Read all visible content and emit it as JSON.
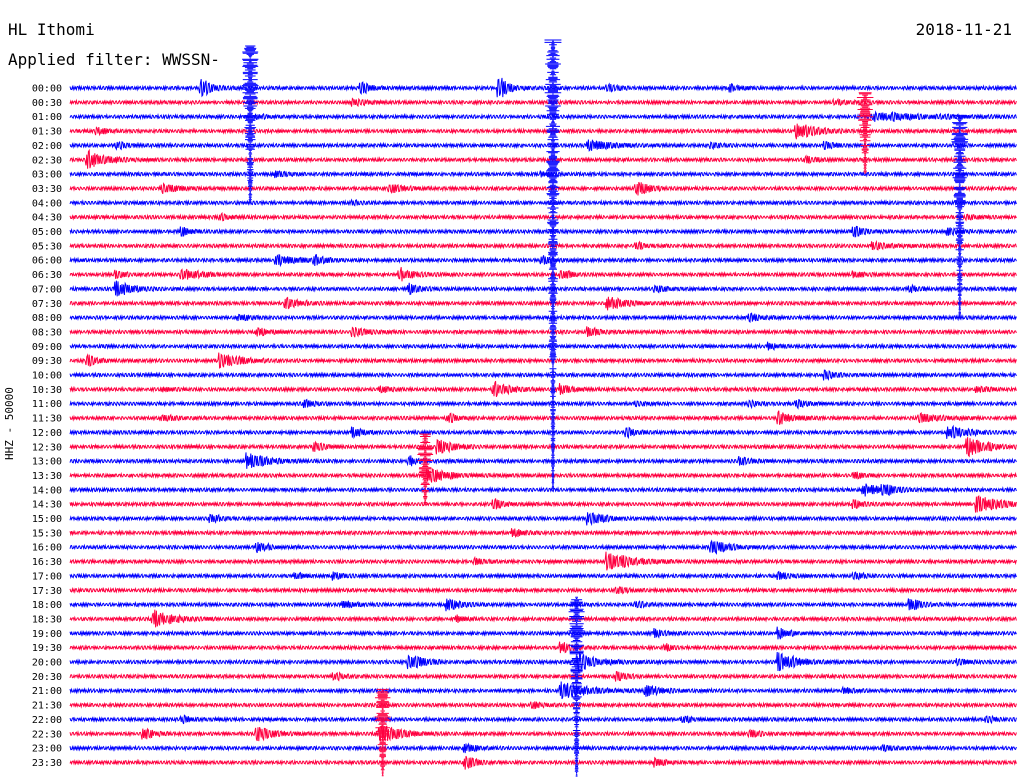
{
  "header": {
    "station": "HL Ithomi",
    "filter": "Applied filter: WWSSN-",
    "date": "2018-11-21"
  },
  "chart_data": {
    "type": "line",
    "title": "HL Ithomi",
    "subtitle": "Applied filter: WWSSN-",
    "date": "2018-11-21",
    "ylabel": "HHZ - 50000",
    "trace_colors": [
      "#0000ff",
      "#ff0040"
    ],
    "categories": [
      "00:00",
      "00:30",
      "01:00",
      "01:30",
      "02:00",
      "02:30",
      "03:00",
      "03:30",
      "04:00",
      "04:30",
      "05:00",
      "05:30",
      "06:00",
      "06:30",
      "07:00",
      "07:30",
      "08:00",
      "08:30",
      "09:00",
      "09:30",
      "10:00",
      "10:30",
      "11:00",
      "11:30",
      "12:00",
      "12:30",
      "13:00",
      "13:30",
      "14:00",
      "14:30",
      "15:00",
      "15:30",
      "16:00",
      "16:30",
      "17:00",
      "17:30",
      "18:00",
      "18:30",
      "19:00",
      "19:30",
      "20:00",
      "20:30",
      "21:00",
      "21:30",
      "22:00",
      "22:30",
      "23:00",
      "23:30"
    ],
    "events": [
      {
        "row": 0,
        "x": 0.14,
        "amp": 9,
        "dur": 0.01
      },
      {
        "row": 0,
        "x": 0.31,
        "amp": 5,
        "dur": 0.01
      },
      {
        "row": 0,
        "x": 0.455,
        "amp": 10,
        "dur": 0.01
      },
      {
        "row": 0,
        "x": 0.57,
        "amp": 4,
        "dur": 0.01
      },
      {
        "row": 0,
        "x": 0.7,
        "amp": 3,
        "dur": 0.01
      },
      {
        "row": 1,
        "x": 0.3,
        "amp": 3,
        "dur": 0.015
      },
      {
        "row": 1,
        "x": 0.81,
        "amp": 2,
        "dur": 0.02
      },
      {
        "row": 2,
        "x": 0.2,
        "amp": 2,
        "dur": 0.01
      },
      {
        "row": 2,
        "x": 0.85,
        "amp": 4,
        "dur": 0.06
      },
      {
        "row": 3,
        "x": 0.03,
        "amp": 3,
        "dur": 0.01
      },
      {
        "row": 3,
        "x": 0.77,
        "amp": 8,
        "dur": 0.02
      },
      {
        "row": 4,
        "x": 0.05,
        "amp": 4,
        "dur": 0.01
      },
      {
        "row": 4,
        "x": 0.55,
        "amp": 6,
        "dur": 0.02
      },
      {
        "row": 4,
        "x": 0.68,
        "amp": 2,
        "dur": 0.01
      },
      {
        "row": 4,
        "x": 0.8,
        "amp": 3,
        "dur": 0.01
      },
      {
        "row": 5,
        "x": 0.02,
        "amp": 9,
        "dur": 0.02
      },
      {
        "row": 5,
        "x": 0.78,
        "amp": 3,
        "dur": 0.01
      },
      {
        "row": 6,
        "x": 0.22,
        "amp": 3,
        "dur": 0.01
      },
      {
        "row": 6,
        "x": 0.5,
        "amp": 2,
        "dur": 0.01
      },
      {
        "row": 7,
        "x": 0.1,
        "amp": 5,
        "dur": 0.015
      },
      {
        "row": 7,
        "x": 0.34,
        "amp": 4,
        "dur": 0.015
      },
      {
        "row": 7,
        "x": 0.6,
        "amp": 6,
        "dur": 0.015
      },
      {
        "row": 8,
        "x": 0.3,
        "amp": 2,
        "dur": 0.01
      },
      {
        "row": 9,
        "x": 0.16,
        "amp": 3,
        "dur": 0.01
      },
      {
        "row": 9,
        "x": 0.95,
        "amp": 2,
        "dur": 0.01
      },
      {
        "row": 10,
        "x": 0.12,
        "amp": 4,
        "dur": 0.01
      },
      {
        "row": 10,
        "x": 0.83,
        "amp": 5,
        "dur": 0.01
      },
      {
        "row": 10,
        "x": 0.93,
        "amp": 3,
        "dur": 0.015
      },
      {
        "row": 11,
        "x": 0.6,
        "amp": 3,
        "dur": 0.01
      },
      {
        "row": 11,
        "x": 0.85,
        "amp": 3,
        "dur": 0.02
      },
      {
        "row": 12,
        "x": 0.22,
        "amp": 5,
        "dur": 0.02
      },
      {
        "row": 12,
        "x": 0.26,
        "amp": 4,
        "dur": 0.01
      },
      {
        "row": 12,
        "x": 0.5,
        "amp": 4,
        "dur": 0.01
      },
      {
        "row": 13,
        "x": 0.05,
        "amp": 3,
        "dur": 0.01
      },
      {
        "row": 13,
        "x": 0.12,
        "amp": 5,
        "dur": 0.02
      },
      {
        "row": 13,
        "x": 0.35,
        "amp": 6,
        "dur": 0.015
      },
      {
        "row": 13,
        "x": 0.52,
        "amp": 5,
        "dur": 0.01
      },
      {
        "row": 13,
        "x": 0.83,
        "amp": 3,
        "dur": 0.01
      },
      {
        "row": 14,
        "x": 0.05,
        "amp": 8,
        "dur": 0.015
      },
      {
        "row": 14,
        "x": 0.36,
        "amp": 5,
        "dur": 0.01
      },
      {
        "row": 14,
        "x": 0.62,
        "amp": 4,
        "dur": 0.01
      },
      {
        "row": 14,
        "x": 0.89,
        "amp": 3,
        "dur": 0.01
      },
      {
        "row": 15,
        "x": 0.23,
        "amp": 5,
        "dur": 0.015
      },
      {
        "row": 15,
        "x": 0.57,
        "amp": 6,
        "dur": 0.02
      },
      {
        "row": 16,
        "x": 0.18,
        "amp": 3,
        "dur": 0.01
      },
      {
        "row": 16,
        "x": 0.72,
        "amp": 4,
        "dur": 0.01
      },
      {
        "row": 17,
        "x": 0.2,
        "amp": 4,
        "dur": 0.01
      },
      {
        "row": 17,
        "x": 0.3,
        "amp": 5,
        "dur": 0.015
      },
      {
        "row": 17,
        "x": 0.55,
        "amp": 5,
        "dur": 0.01
      },
      {
        "row": 18,
        "x": 0.74,
        "amp": 3,
        "dur": 0.01
      },
      {
        "row": 19,
        "x": 0.02,
        "amp": 5,
        "dur": 0.01
      },
      {
        "row": 19,
        "x": 0.16,
        "amp": 7,
        "dur": 0.02
      },
      {
        "row": 20,
        "x": 0.8,
        "amp": 4,
        "dur": 0.01
      },
      {
        "row": 21,
        "x": 0.1,
        "amp": 2,
        "dur": 0.01
      },
      {
        "row": 21,
        "x": 0.33,
        "amp": 3,
        "dur": 0.01
      },
      {
        "row": 21,
        "x": 0.45,
        "amp": 7,
        "dur": 0.015
      },
      {
        "row": 21,
        "x": 0.52,
        "amp": 5,
        "dur": 0.01
      },
      {
        "row": 21,
        "x": 0.96,
        "amp": 3,
        "dur": 0.01
      },
      {
        "row": 22,
        "x": 0.25,
        "amp": 3,
        "dur": 0.01
      },
      {
        "row": 22,
        "x": 0.6,
        "amp": 2,
        "dur": 0.01
      },
      {
        "row": 22,
        "x": 0.72,
        "amp": 3,
        "dur": 0.01
      },
      {
        "row": 22,
        "x": 0.77,
        "amp": 3,
        "dur": 0.01
      },
      {
        "row": 23,
        "x": 0.1,
        "amp": 3,
        "dur": 0.015
      },
      {
        "row": 23,
        "x": 0.4,
        "amp": 4,
        "dur": 0.01
      },
      {
        "row": 23,
        "x": 0.75,
        "amp": 6,
        "dur": 0.015
      },
      {
        "row": 23,
        "x": 0.9,
        "amp": 4,
        "dur": 0.02
      },
      {
        "row": 24,
        "x": 0.3,
        "amp": 5,
        "dur": 0.01
      },
      {
        "row": 24,
        "x": 0.59,
        "amp": 4,
        "dur": 0.01
      },
      {
        "row": 24,
        "x": 0.93,
        "amp": 6,
        "dur": 0.02
      },
      {
        "row": 25,
        "x": 0.26,
        "amp": 4,
        "dur": 0.01
      },
      {
        "row": 25,
        "x": 0.39,
        "amp": 8,
        "dur": 0.015
      },
      {
        "row": 25,
        "x": 0.95,
        "amp": 9,
        "dur": 0.02
      },
      {
        "row": 26,
        "x": 0.19,
        "amp": 7,
        "dur": 0.02
      },
      {
        "row": 26,
        "x": 0.36,
        "amp": 4,
        "dur": 0.01
      },
      {
        "row": 26,
        "x": 0.71,
        "amp": 4,
        "dur": 0.01
      },
      {
        "row": 27,
        "x": 0.38,
        "amp": 8,
        "dur": 0.02
      },
      {
        "row": 27,
        "x": 0.83,
        "amp": 3,
        "dur": 0.01
      },
      {
        "row": 28,
        "x": 0.84,
        "amp": 6,
        "dur": 0.015
      },
      {
        "row": 28,
        "x": 0.86,
        "amp": 5,
        "dur": 0.015
      },
      {
        "row": 29,
        "x": 0.45,
        "amp": 5,
        "dur": 0.01
      },
      {
        "row": 29,
        "x": 0.83,
        "amp": 4,
        "dur": 0.01
      },
      {
        "row": 29,
        "x": 0.96,
        "amp": 8,
        "dur": 0.025
      },
      {
        "row": 30,
        "x": 0.15,
        "amp": 4,
        "dur": 0.01
      },
      {
        "row": 30,
        "x": 0.55,
        "amp": 6,
        "dur": 0.015
      },
      {
        "row": 31,
        "x": 0.47,
        "amp": 4,
        "dur": 0.01
      },
      {
        "row": 32,
        "x": 0.2,
        "amp": 5,
        "dur": 0.01
      },
      {
        "row": 32,
        "x": 0.68,
        "amp": 7,
        "dur": 0.015
      },
      {
        "row": 33,
        "x": 0.43,
        "amp": 3,
        "dur": 0.01
      },
      {
        "row": 33,
        "x": 0.57,
        "amp": 9,
        "dur": 0.025
      },
      {
        "row": 34,
        "x": 0.24,
        "amp": 3,
        "dur": 0.01
      },
      {
        "row": 34,
        "x": 0.28,
        "amp": 3,
        "dur": 0.01
      },
      {
        "row": 34,
        "x": 0.75,
        "amp": 4,
        "dur": 0.01
      },
      {
        "row": 34,
        "x": 0.83,
        "amp": 3,
        "dur": 0.01
      },
      {
        "row": 35,
        "x": 0.58,
        "amp": 3,
        "dur": 0.01
      },
      {
        "row": 36,
        "x": 0.29,
        "amp": 4,
        "dur": 0.01
      },
      {
        "row": 36,
        "x": 0.4,
        "amp": 5,
        "dur": 0.015
      },
      {
        "row": 36,
        "x": 0.6,
        "amp": 3,
        "dur": 0.01
      },
      {
        "row": 36,
        "x": 0.89,
        "amp": 6,
        "dur": 0.01
      },
      {
        "row": 37,
        "x": 0.09,
        "amp": 8,
        "dur": 0.02
      },
      {
        "row": 37,
        "x": 0.41,
        "amp": 3,
        "dur": 0.01
      },
      {
        "row": 38,
        "x": 0.62,
        "amp": 4,
        "dur": 0.01
      },
      {
        "row": 38,
        "x": 0.75,
        "amp": 6,
        "dur": 0.01
      },
      {
        "row": 39,
        "x": 0.52,
        "amp": 6,
        "dur": 0.01
      },
      {
        "row": 39,
        "x": 0.63,
        "amp": 3,
        "dur": 0.01
      },
      {
        "row": 40,
        "x": 0.36,
        "amp": 7,
        "dur": 0.015
      },
      {
        "row": 40,
        "x": 0.54,
        "amp": 8,
        "dur": 0.02
      },
      {
        "row": 40,
        "x": 0.75,
        "amp": 9,
        "dur": 0.02
      },
      {
        "row": 40,
        "x": 0.94,
        "amp": 3,
        "dur": 0.01
      },
      {
        "row": 41,
        "x": 0.28,
        "amp": 4,
        "dur": 0.01
      },
      {
        "row": 41,
        "x": 0.58,
        "amp": 4,
        "dur": 0.01
      },
      {
        "row": 42,
        "x": 0.52,
        "amp": 9,
        "dur": 0.025
      },
      {
        "row": 42,
        "x": 0.61,
        "amp": 5,
        "dur": 0.015
      },
      {
        "row": 42,
        "x": 0.82,
        "amp": 3,
        "dur": 0.01
      },
      {
        "row": 43,
        "x": 0.49,
        "amp": 3,
        "dur": 0.01
      },
      {
        "row": 44,
        "x": 0.12,
        "amp": 3,
        "dur": 0.01
      },
      {
        "row": 44,
        "x": 0.65,
        "amp": 3,
        "dur": 0.01
      },
      {
        "row": 44,
        "x": 0.97,
        "amp": 3,
        "dur": 0.01
      },
      {
        "row": 45,
        "x": 0.08,
        "amp": 5,
        "dur": 0.01
      },
      {
        "row": 45,
        "x": 0.2,
        "amp": 7,
        "dur": 0.015
      },
      {
        "row": 45,
        "x": 0.33,
        "amp": 9,
        "dur": 0.02
      },
      {
        "row": 45,
        "x": 0.72,
        "amp": 3,
        "dur": 0.01
      },
      {
        "row": 46,
        "x": 0.42,
        "amp": 4,
        "dur": 0.01
      },
      {
        "row": 46,
        "x": 0.86,
        "amp": 3,
        "dur": 0.01
      },
      {
        "row": 47,
        "x": 0.42,
        "amp": 6,
        "dur": 0.01
      },
      {
        "row": 47,
        "x": 0.62,
        "amp": 4,
        "dur": 0.01
      }
    ],
    "big_events": [
      {
        "start_row": 0,
        "x": 0.19,
        "amp": 70,
        "rows": 8,
        "color": "#0000ff"
      },
      {
        "start_row": 0,
        "x": 0.51,
        "amp": 80,
        "rows": 28,
        "color": "#0000ff"
      },
      {
        "start_row": 38,
        "x": 0.535,
        "amp": 60,
        "rows": 10,
        "color": "#0000ff"
      },
      {
        "start_row": 4,
        "x": 0.94,
        "amp": 50,
        "rows": 12,
        "color": "#0000ff"
      },
      {
        "start_row": 2,
        "x": 0.84,
        "amp": 40,
        "rows": 4,
        "color": "#ff0040"
      },
      {
        "start_row": 26,
        "x": 0.375,
        "amp": 45,
        "rows": 3,
        "color": "#ff0040"
      },
      {
        "start_row": 44,
        "x": 0.33,
        "amp": 50,
        "rows": 4,
        "color": "#ff0040"
      }
    ]
  }
}
